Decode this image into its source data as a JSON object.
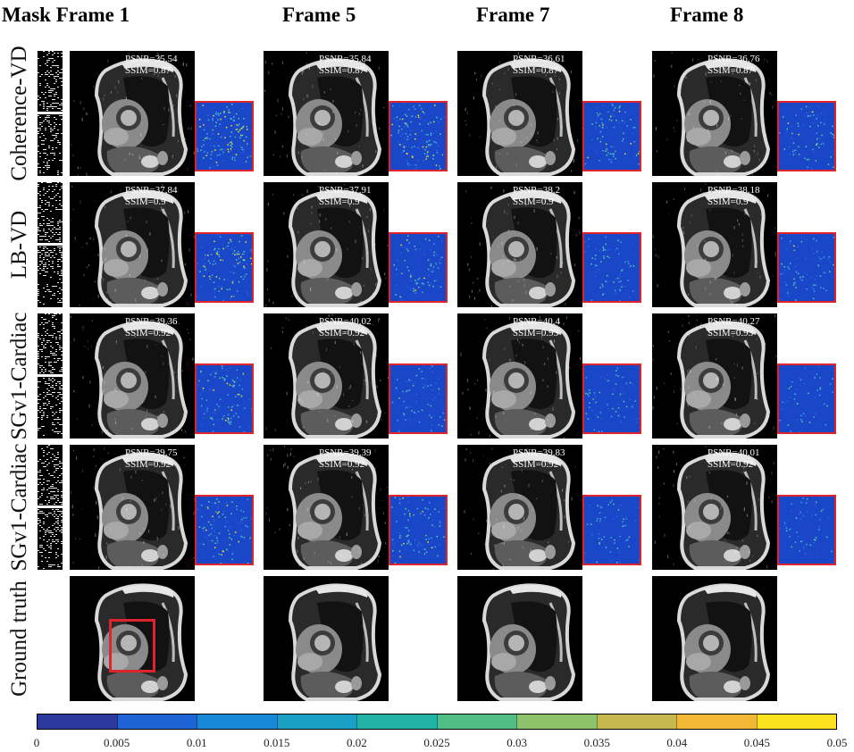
{
  "column_headers": [
    "Mask Frame 1",
    "Frame 5",
    "Frame 7",
    "Frame 8"
  ],
  "rows": [
    {
      "label": "Coherence-VD",
      "psnr": [
        "PSNR=35.54",
        "PSNR=35.84",
        "PSNR=36.61",
        "PSNR=36.76"
      ],
      "ssim": [
        "SSIM=0.87",
        "SSIM=0.87",
        "SSIM=0.87",
        "SSIM=0.87"
      ]
    },
    {
      "label": "LB-VD",
      "psnr": [
        "PSNR=37.84",
        "PSNR=37.91",
        "PSNR=38.2",
        "PSNR=38.18"
      ],
      "ssim": [
        "SSIM=0.9",
        "SSIM=0.9",
        "SSIM=0.9",
        "SSIM=0.9"
      ]
    },
    {
      "label": "SGv1-Cardiac",
      "psnr": [
        "PSNR=39.36",
        "PSNR=40.02",
        "PSNR=40.4",
        "PSNR=40.27"
      ],
      "ssim": [
        "SSIM=0.92",
        "SSIM=0.92",
        "SSIM=0.93",
        "SSIM=0.93"
      ]
    },
    {
      "label": "SGv1-Cardiac",
      "psnr": [
        "PSNR=39.75",
        "PSNR=39.39",
        "PSNR=39.83",
        "PSNR=40.01"
      ],
      "ssim": [
        "SSIM=0.92",
        "SSIM=0.92",
        "SSIM=0.92",
        "SSIM=0.92"
      ]
    },
    {
      "label": "Ground truth"
    }
  ],
  "colorbar": {
    "ticks": [
      "0",
      "0.005",
      "0.01",
      "0.015",
      "0.02",
      "0.025",
      "0.03",
      "0.035",
      "0.04",
      "0.045",
      "0.05"
    ],
    "colors": [
      "#2b3a9c",
      "#1f64d6",
      "#1789d8",
      "#1aa0c4",
      "#21b3a6",
      "#4fbe86",
      "#8cc36a",
      "#c6b84d",
      "#f2b735",
      "#fbe21e"
    ]
  },
  "colors": {
    "roi_box": "#e0242b",
    "error_background": "#1a46c8",
    "error_highlight": "#f5e51c"
  }
}
